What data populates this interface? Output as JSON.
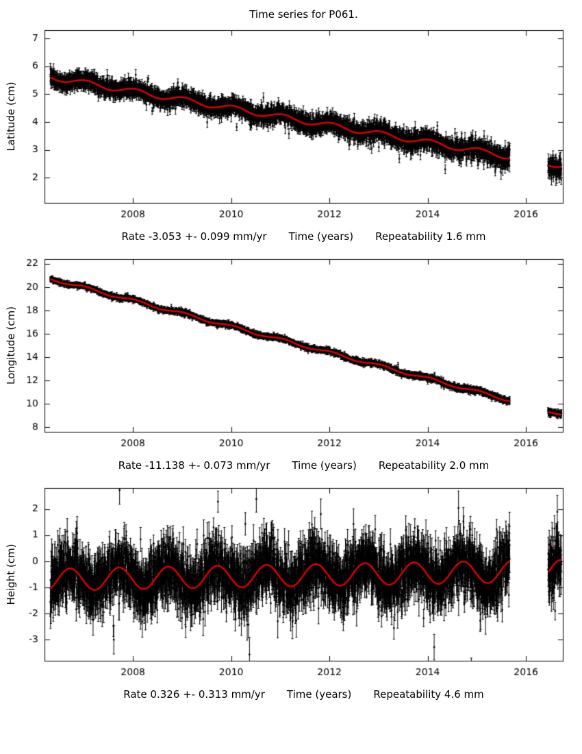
{
  "title": "Time series for P061.",
  "colors": {
    "background": "#ffffff",
    "axis": "#000000",
    "points": "#000000",
    "trend": "#dd0000"
  },
  "x_axis": {
    "label": "Time (years)",
    "min": 2006.2,
    "max": 2016.75,
    "ticks": [
      2008,
      2010,
      2012,
      2014,
      2016
    ]
  },
  "data_span": {
    "start": 2006.32,
    "end": 2016.72,
    "gaps": [
      [
        2015.67,
        2016.45
      ]
    ],
    "points_per_year": 365
  },
  "chart_data": [
    {
      "type": "scatter",
      "id": "latitude",
      "ylabel": "Latitude (cm)",
      "ylim": [
        1.1,
        7.3
      ],
      "yticks": [
        2,
        3,
        4,
        5,
        6,
        7
      ],
      "caption": {
        "rate": "Rate -3.053 +- 0.099 mm/yr",
        "xlabel": "Time (years)",
        "repeatability": "Repeatability 1.6 mm"
      },
      "model": {
        "ref_year": 2006.32,
        "intercept_cm": 5.62,
        "rate_cm_per_yr": -0.3053,
        "annual_amplitude_cm": 0.1,
        "annual_phase_yr": 0.05,
        "noise_sigma_cm": 0.11,
        "noise_sigma_end_cm": 0.2,
        "errorbar_cm": 0.17,
        "outlier_rate": 0.02,
        "seed": 7
      }
    },
    {
      "type": "scatter",
      "id": "longitude",
      "ylabel": "Longitude (cm)",
      "ylim": [
        7.6,
        22.4
      ],
      "yticks": [
        8,
        10,
        12,
        14,
        16,
        18,
        20,
        22
      ],
      "caption": {
        "rate": "Rate -11.138 +- 0.073 mm/yr",
        "xlabel": "Time (years)",
        "repeatability": "Repeatability 2.0 mm"
      },
      "model": {
        "ref_year": 2006.32,
        "intercept_cm": 20.72,
        "rate_cm_per_yr": -1.1138,
        "annual_amplitude_cm": 0.12,
        "annual_phase_yr": 0.05,
        "noise_sigma_cm": 0.09,
        "noise_sigma_end_cm": 0.13,
        "errorbar_cm": 0.14,
        "outlier_rate": 0.01,
        "seed": 21
      }
    },
    {
      "type": "scatter",
      "id": "height",
      "ylabel": "Height (cm)",
      "ylim": [
        -3.8,
        2.8
      ],
      "yticks": [
        -3,
        -2,
        -1,
        0,
        1,
        2
      ],
      "caption": {
        "rate": "Rate 0.326 +- 0.313 mm/yr",
        "xlabel": "Time (years)",
        "repeatability": "Repeatability 4.6 mm"
      },
      "model": {
        "ref_year": 2006.32,
        "intercept_cm": -0.7,
        "rate_cm_per_yr": 0.0326,
        "annual_amplitude_cm": 0.42,
        "annual_phase_yr": 0.72,
        "noise_sigma_cm": 0.55,
        "noise_sigma_end_cm": 0.55,
        "errorbar_cm": 0.48,
        "outlier_rate": 0.03,
        "seed": 42
      }
    }
  ]
}
